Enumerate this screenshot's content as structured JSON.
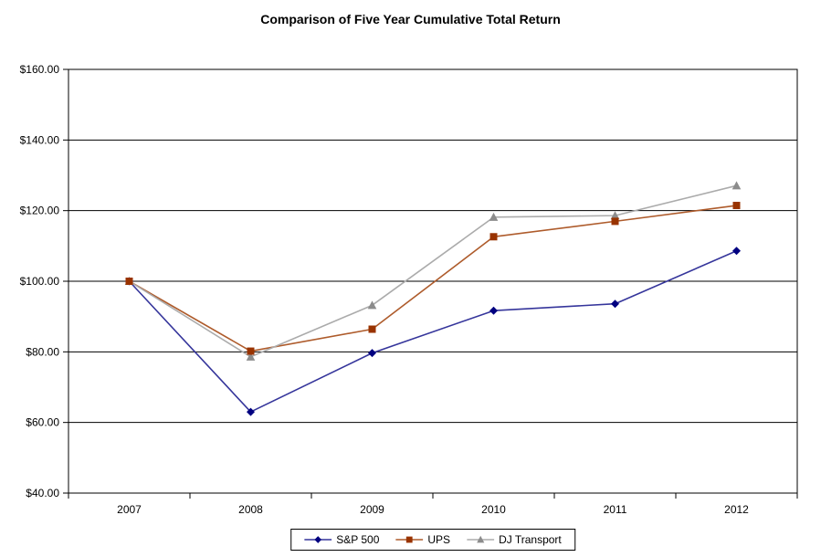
{
  "chart_data": {
    "type": "line",
    "title": "Comparison of Five Year Cumulative Total Return",
    "categories": [
      "2007",
      "2008",
      "2009",
      "2010",
      "2011",
      "2012"
    ],
    "series": [
      {
        "name": "S&P 500",
        "marker": "diamond",
        "line_color": "#35359B",
        "marker_color": "#000080",
        "values": [
          100.0,
          63.0,
          79.67,
          91.67,
          93.61,
          108.59
        ]
      },
      {
        "name": "UPS",
        "marker": "square",
        "line_color": "#AE5B2B",
        "marker_color": "#993300",
        "values": [
          100.0,
          80.2,
          86.42,
          112.6,
          116.97,
          121.46
        ]
      },
      {
        "name": "DJ Transport",
        "marker": "triangle",
        "line_color": "#ABABAB",
        "marker_color": "#8C8C8C",
        "values": [
          100.0,
          78.58,
          93.19,
          118.14,
          118.59,
          127.07
        ]
      }
    ],
    "y_axis": {
      "min": 40,
      "max": 160,
      "step": 20,
      "tick_labels": [
        "$40.00",
        "$60.00",
        "$80.00",
        "$100.00",
        "$120.00",
        "$140.00",
        "$160.00"
      ]
    },
    "x_axis": {
      "tick_labels": [
        "2007",
        "2008",
        "2009",
        "2010",
        "2011",
        "2012"
      ]
    },
    "grid": true,
    "legend_position": "bottom-center",
    "axis_color": "#000000",
    "background": "#FFFFFF"
  }
}
